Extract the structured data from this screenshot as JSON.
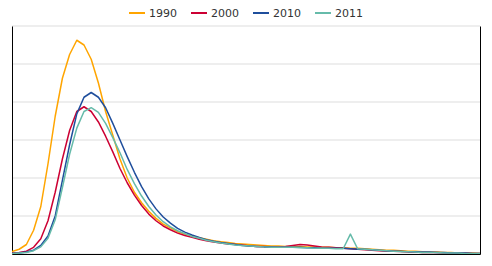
{
  "chart_data": {
    "type": "line",
    "x": [
      15,
      16,
      17,
      18,
      19,
      20,
      21,
      22,
      23,
      24,
      25,
      26,
      27,
      28,
      29,
      30,
      31,
      32,
      33,
      34,
      35,
      36,
      37,
      38,
      39,
      40,
      41,
      42,
      43,
      44,
      45,
      46,
      47,
      48,
      49,
      50,
      51,
      52,
      53,
      54,
      55,
      56,
      57,
      58,
      59,
      60,
      61,
      62,
      63,
      64,
      65,
      66,
      67,
      68,
      69,
      70,
      71,
      72,
      73,
      74,
      75,
      76,
      77,
      78,
      79,
      80
    ],
    "series": [
      {
        "name": "1990",
        "color": "#FFA500",
        "values": [
          5,
          10,
          20,
          50,
          100,
          190,
          290,
          370,
          420,
          450,
          440,
          410,
          360,
          300,
          250,
          200,
          160,
          130,
          108,
          90,
          75,
          63,
          55,
          47,
          42,
          38,
          34,
          31,
          28,
          26,
          24,
          22,
          21,
          20,
          19,
          18,
          17,
          17,
          16,
          16,
          16,
          15,
          15,
          14,
          14,
          13,
          13,
          12,
          12,
          11,
          10,
          9,
          8,
          8,
          7,
          6,
          6,
          5,
          4,
          4,
          3,
          3,
          2,
          2,
          2,
          1
        ]
      },
      {
        "name": "2000",
        "color": "#CC0033",
        "values": [
          2,
          3,
          6,
          14,
          32,
          70,
          130,
          200,
          260,
          300,
          310,
          300,
          278,
          248,
          215,
          180,
          150,
          124,
          102,
          84,
          70,
          59,
          51,
          44,
          39,
          35,
          31,
          28,
          25,
          23,
          21,
          20,
          19,
          17,
          16,
          16,
          15,
          15,
          16,
          18,
          20,
          19,
          17,
          15,
          14,
          13,
          12,
          11,
          10,
          9,
          8,
          7,
          6,
          6,
          5,
          4,
          4,
          3,
          3,
          3,
          2,
          2,
          2,
          2,
          1,
          1
        ]
      },
      {
        "name": "2010",
        "color": "#1F4E9C",
        "values": [
          1,
          2,
          4,
          8,
          18,
          38,
          80,
          155,
          230,
          295,
          330,
          340,
          330,
          308,
          275,
          240,
          205,
          172,
          142,
          116,
          95,
          78,
          65,
          54,
          46,
          40,
          35,
          30,
          27,
          24,
          22,
          20,
          18,
          17,
          16,
          15,
          15,
          14,
          14,
          14,
          14,
          13,
          13,
          12,
          12,
          12,
          12,
          11,
          10,
          10,
          9,
          8,
          7,
          6,
          6,
          5,
          5,
          4,
          4,
          3,
          3,
          2,
          2,
          2,
          1,
          1
        ]
      },
      {
        "name": "2011",
        "color": "#66BBAA",
        "values": [
          1,
          2,
          3,
          7,
          15,
          33,
          72,
          140,
          210,
          265,
          300,
          308,
          298,
          275,
          245,
          213,
          178,
          148,
          122,
          100,
          82,
          68,
          57,
          49,
          43,
          37,
          33,
          29,
          26,
          23,
          21,
          19,
          18,
          17,
          16,
          15,
          14,
          14,
          14,
          14,
          13,
          13,
          12,
          12,
          12,
          11,
          11,
          42,
          11,
          10,
          9,
          8,
          7,
          6,
          5,
          5,
          4,
          3,
          3,
          3,
          2,
          2,
          2,
          1,
          1,
          1
        ]
      }
    ],
    "xlim": [
      15,
      80
    ],
    "ylim": [
      0,
      480
    ],
    "yticks": [
      0,
      80,
      160,
      240,
      320,
      400,
      480
    ],
    "grid": true,
    "tick_labels": false,
    "legend": "top"
  }
}
